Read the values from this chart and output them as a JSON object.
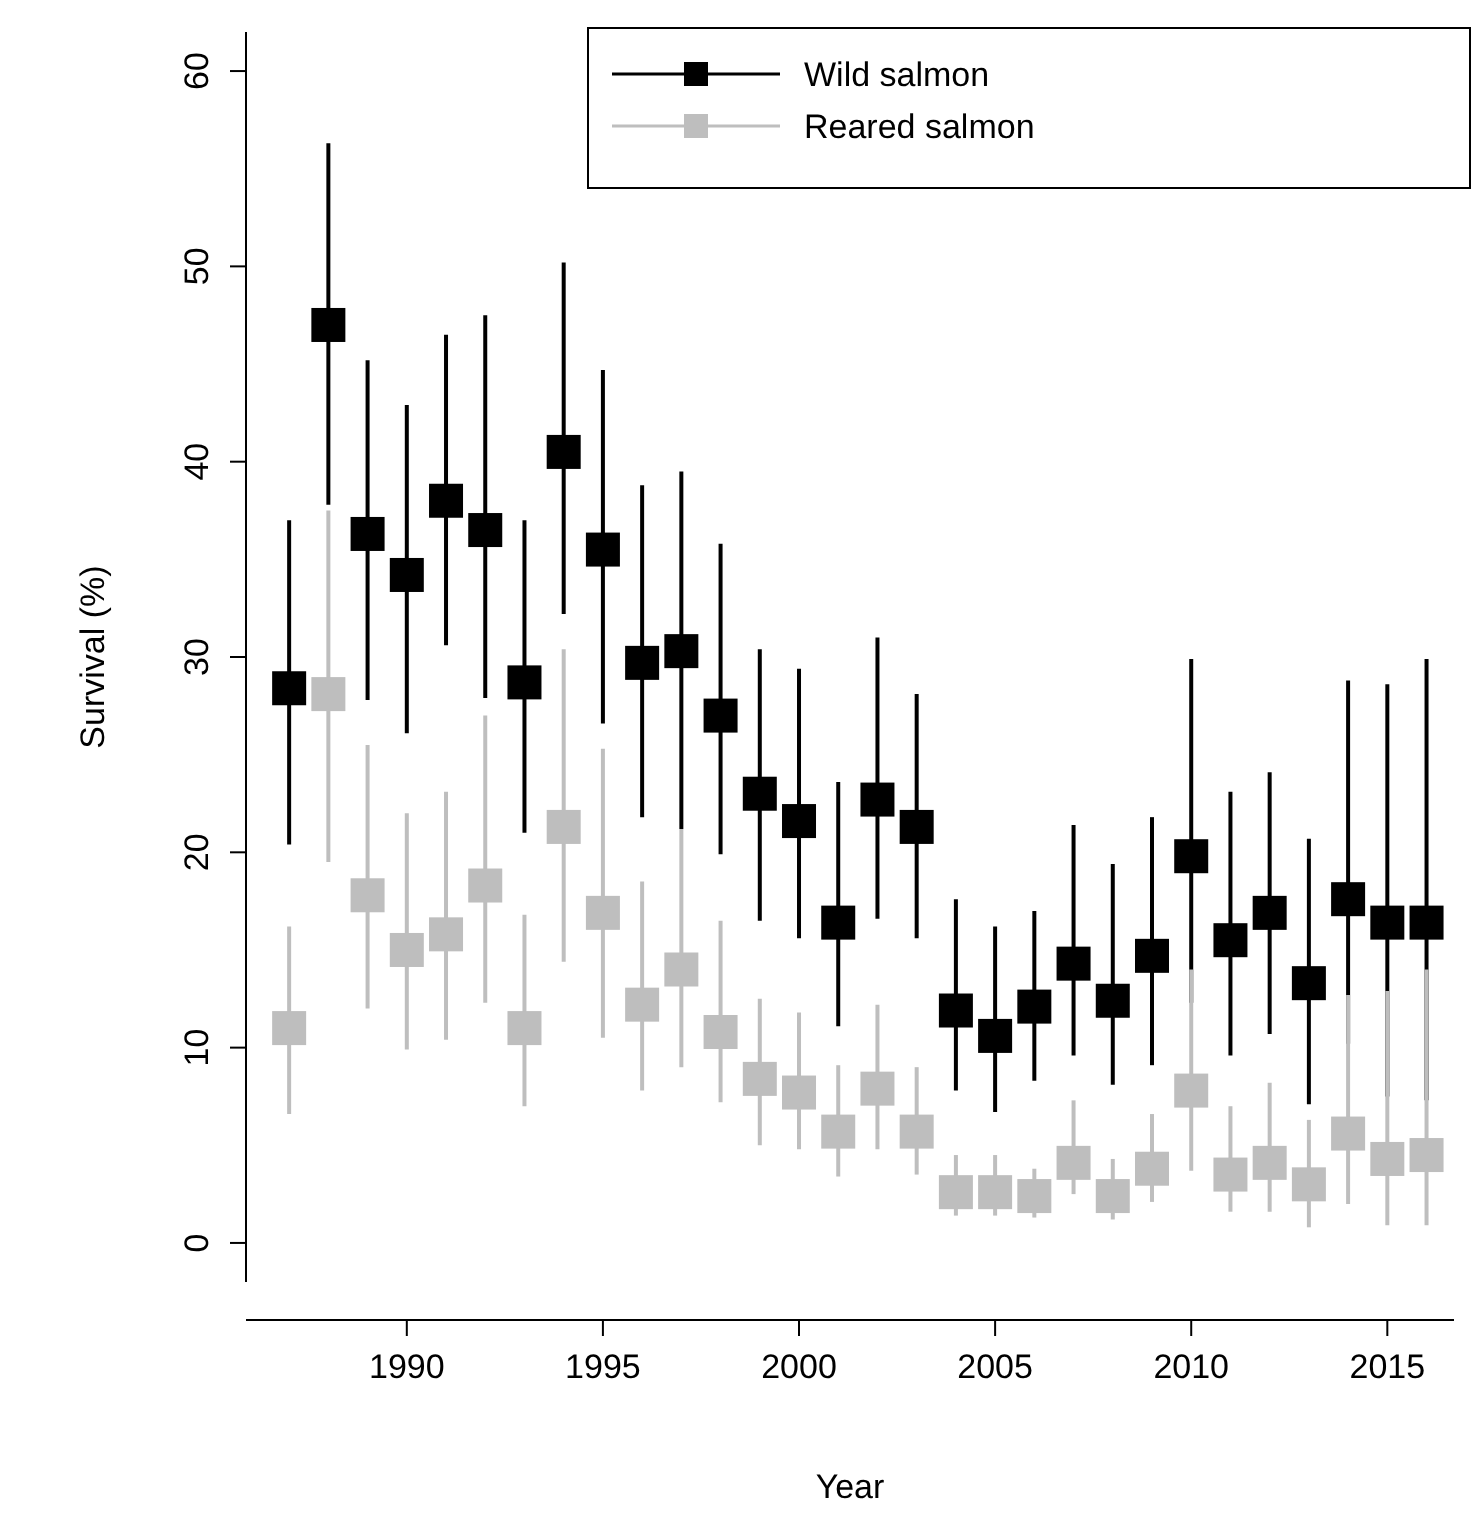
{
  "chart_data": {
    "type": "scatter",
    "xlabel": "Year",
    "ylabel": "Survival (%)",
    "x": [
      1987,
      1988,
      1989,
      1990,
      1991,
      1992,
      1993,
      1994,
      1995,
      1996,
      1997,
      1998,
      1999,
      2000,
      2001,
      2002,
      2003,
      2004,
      2005,
      2006,
      2007,
      2008,
      2009,
      2010,
      2011,
      2012,
      2013,
      2014,
      2015,
      2016
    ],
    "xlim": [
      1985.9,
      2016.7
    ],
    "xticks": [
      1990,
      1995,
      2000,
      2005,
      2010,
      2015
    ],
    "ylim": [
      -2,
      62
    ],
    "yticks": [
      0,
      10,
      20,
      30,
      40,
      50,
      60
    ],
    "marker": "square",
    "grid": false,
    "legend": "top right",
    "series": [
      {
        "name": "Wild salmon",
        "color": "#000000",
        "values": [
          28.4,
          47,
          36.3,
          34.2,
          38,
          36.5,
          28.7,
          40.5,
          35.5,
          29.7,
          30.3,
          27,
          23,
          21.6,
          16.4,
          22.7,
          21.3,
          11.9,
          10.6,
          12.1,
          14.3,
          12.4,
          14.7,
          19.8,
          15.5,
          16.9,
          13.3,
          17.6,
          16.4,
          16.4
        ],
        "errors": [
          [
            20.4,
            37
          ],
          [
            37.8,
            56.3
          ],
          [
            27.8,
            45.2
          ],
          [
            26.1,
            42.9
          ],
          [
            30.6,
            46.5
          ],
          [
            27.9,
            47.5
          ],
          [
            21,
            37
          ],
          [
            32.2,
            50.2
          ],
          [
            26.6,
            44.7
          ],
          [
            21.8,
            38.8
          ],
          [
            21.2,
            39.5
          ],
          [
            19.9,
            35.8
          ],
          [
            16.5,
            30.4
          ],
          [
            15.6,
            29.4
          ],
          [
            11.1,
            23.6
          ],
          [
            16.6,
            31
          ],
          [
            15.6,
            28.1
          ],
          [
            7.8,
            17.6
          ],
          [
            6.7,
            16.2
          ],
          [
            8.3,
            17
          ],
          [
            9.6,
            21.4
          ],
          [
            8.1,
            19.4
          ],
          [
            9.1,
            21.8
          ],
          [
            12.3,
            29.9
          ],
          [
            9.6,
            23.1
          ],
          [
            10.7,
            24.1
          ],
          [
            7.1,
            20.7
          ],
          [
            10.2,
            28.8
          ],
          [
            7.5,
            28.6
          ],
          [
            7.3,
            29.9
          ]
        ]
      },
      {
        "name": "Reared salmon",
        "color": "#bebebe",
        "values": [
          11,
          28.1,
          17.8,
          15,
          15.8,
          18.3,
          11,
          21.3,
          16.9,
          12.2,
          14,
          10.8,
          8.4,
          7.7,
          5.7,
          7.9,
          5.7,
          2.6,
          2.6,
          2.4,
          4.1,
          2.4,
          3.8,
          7.8,
          3.5,
          4.1,
          3,
          5.6,
          4.3,
          4.5
        ],
        "errors": [
          [
            6.6,
            16.2
          ],
          [
            19.5,
            37.5
          ],
          [
            12,
            25.5
          ],
          [
            9.9,
            22
          ],
          [
            10.4,
            23.1
          ],
          [
            12.3,
            27
          ],
          [
            7,
            16.8
          ],
          [
            14.4,
            30.4
          ],
          [
            10.5,
            25.3
          ],
          [
            7.8,
            18.5
          ],
          [
            9,
            21.2
          ],
          [
            7.2,
            16.5
          ],
          [
            5,
            12.5
          ],
          [
            4.8,
            11.8
          ],
          [
            3.4,
            9.1
          ],
          [
            4.8,
            12.2
          ],
          [
            3.5,
            9
          ],
          [
            1.4,
            4.5
          ],
          [
            1.4,
            4.5
          ],
          [
            1.3,
            3.8
          ],
          [
            2.5,
            7.3
          ],
          [
            1.2,
            4.3
          ],
          [
            2.1,
            6.6
          ],
          [
            3.7,
            14
          ],
          [
            1.6,
            7
          ],
          [
            1.6,
            8.2
          ],
          [
            0.8,
            6.3
          ],
          [
            2,
            12.7
          ],
          [
            0.9,
            12.9
          ],
          [
            0.9,
            14
          ]
        ]
      }
    ]
  }
}
